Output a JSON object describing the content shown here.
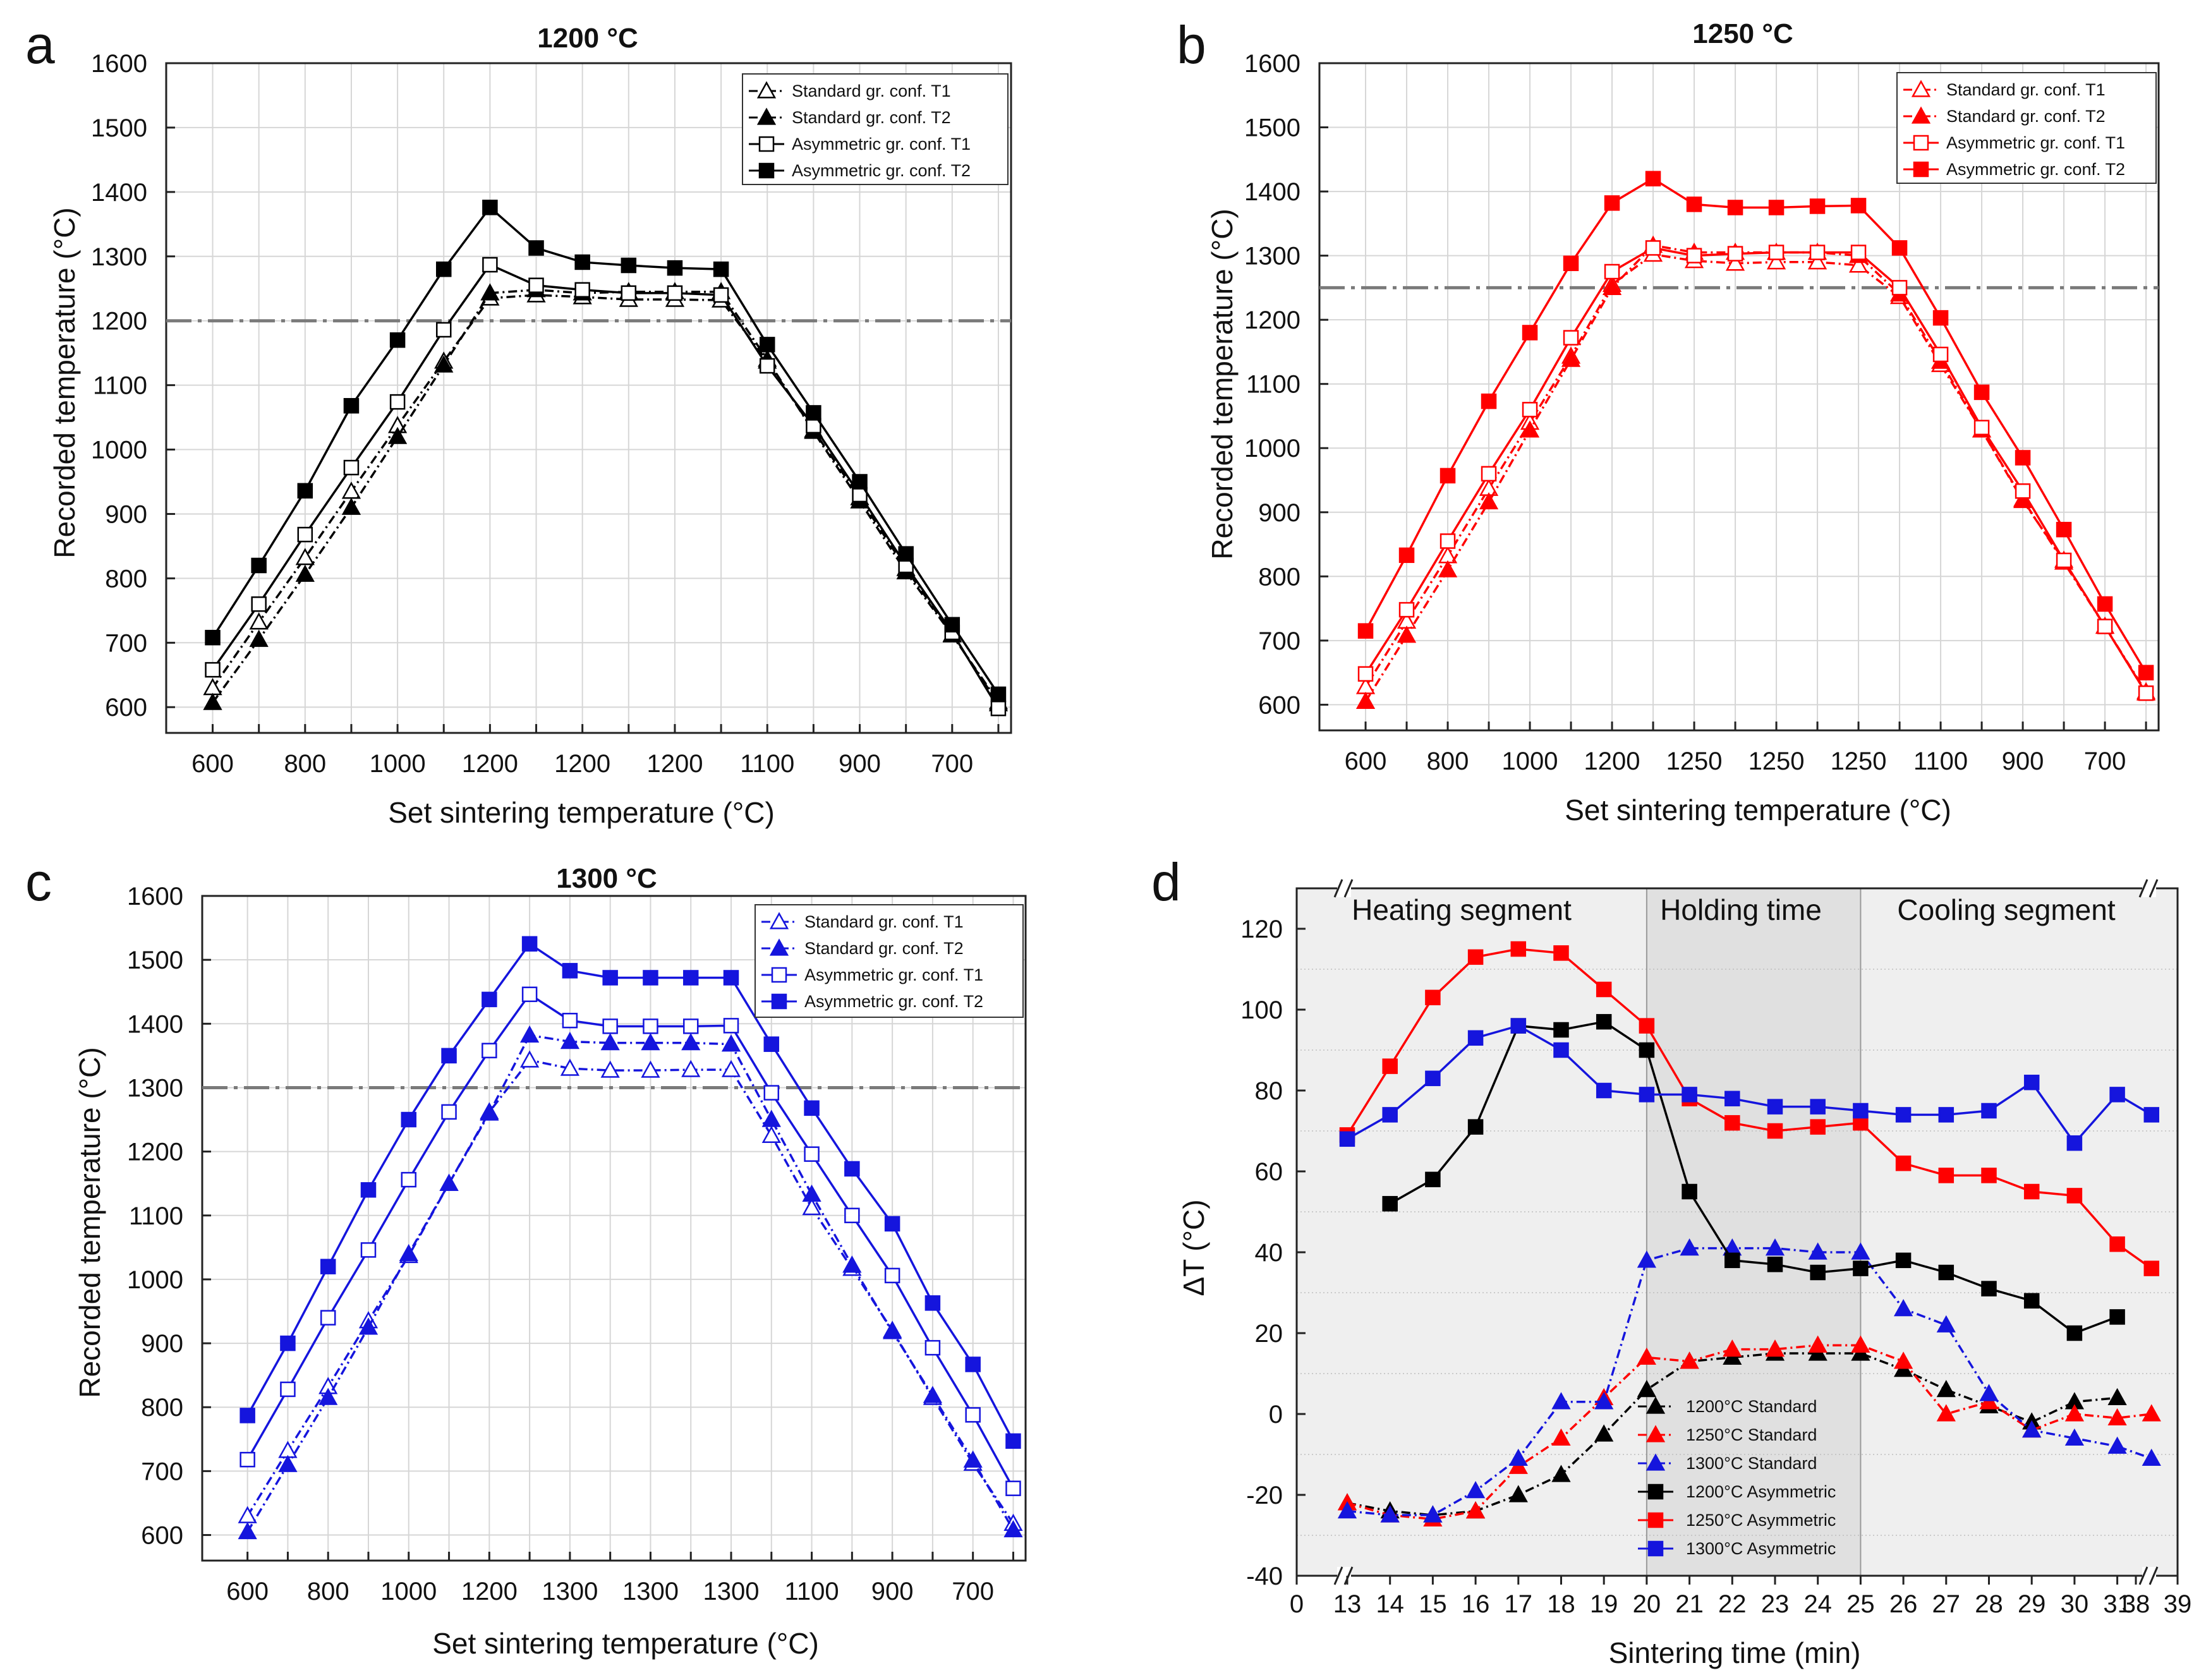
{
  "figure": {
    "colors": {
      "black": "#000000",
      "red": "#ff0000",
      "blue": "#1515dd",
      "ref": "#7a7a7a"
    },
    "panels": [
      {
        "letter": "a",
        "title": "1200 °C",
        "color": "#000000",
        "xlabel": "Set sintering temperature (°C)",
        "ylabel": "Recorded temperature (°C)",
        "ylim": [
          560,
          1600
        ],
        "yticks": [
          600,
          700,
          800,
          900,
          1000,
          1100,
          1200,
          1300,
          1400,
          1500,
          1600
        ],
        "xtick_labels": [
          "600",
          "800",
          "1000",
          "1200",
          "1200",
          "1200",
          "1100",
          "900",
          "700"
        ],
        "set_point": 1200,
        "legend": [
          "Standard gr. conf. T1",
          "Standard gr. conf. T2",
          "Asymmetric gr. conf. T1",
          "Asymmetric gr. conf. T2"
        ],
        "series": [
          {
            "name": "Standard gr. conf. T1",
            "values": [
              630,
              732,
              832,
              935,
              1037,
              1137,
              1235,
              1240,
              1237,
              1233,
              1233,
              1232,
              1137,
              1030,
              925,
              815,
              713,
              605
            ]
          },
          {
            "name": "Standard gr. conf. T2",
            "values": [
              607,
              705,
              806,
              910,
              1020,
              1131,
              1243,
              1248,
              1243,
              1245,
              1245,
              1245,
              1140,
              1028,
              920,
              810,
              712,
              608
            ]
          },
          {
            "name": "Asymmetric gr. conf. T1",
            "values": [
              658,
              760,
              868,
              972,
              1074,
              1186,
              1287,
              1255,
              1248,
              1243,
              1243,
              1240,
              1130,
              1037,
              930,
              820,
              716,
              598
            ]
          },
          {
            "name": "Asymmetric gr. conf. T2",
            "values": [
              708,
              820,
              936,
              1068,
              1170,
              1280,
              1376,
              1313,
              1291,
              1286,
              1282,
              1280,
              1163,
              1057,
              950,
              838,
              728,
              620
            ]
          }
        ]
      },
      {
        "letter": "b",
        "title": "1250 °C",
        "color": "#ff0000",
        "xlabel": "Set sintering temperature (°C)",
        "ylabel": "Recorded temperature (°C)",
        "ylim": [
          560,
          1600
        ],
        "yticks": [
          600,
          700,
          800,
          900,
          1000,
          1100,
          1200,
          1300,
          1400,
          1500,
          1600
        ],
        "xtick_labels": [
          "600",
          "800",
          "1000",
          "1200",
          "1250",
          "1250",
          "1250",
          "1100",
          "900",
          "700"
        ],
        "set_point": 1250,
        "legend": [
          "Standard gr. conf. T1",
          "Standard gr. conf. T2",
          "Asymmetric gr. conf. T1",
          "Asymmetric gr. conf. T2"
        ],
        "series": [
          {
            "name": "Standard gr. conf. T1",
            "values": [
              628,
              730,
              832,
              937,
              1040,
              1143,
              1255,
              1302,
              1292,
              1288,
              1290,
              1290,
              1285,
              1236,
              1130,
              1028,
              920,
              822,
              722,
              620
            ]
          },
          {
            "name": "Standard gr. conf. T2",
            "values": [
              605,
              708,
              810,
              916,
              1028,
              1138,
              1250,
              1316,
              1305,
              1305,
              1305,
              1305,
              1300,
              1240,
              1135,
              1028,
              918,
              825,
              722,
              618
            ]
          },
          {
            "name": "Asymmetric gr. conf. T1",
            "values": [
              648,
              748,
              855,
              960,
              1060,
              1172,
              1275,
              1312,
              1300,
              1303,
              1305,
              1305,
              1305,
              1250,
              1146,
              1032,
              933,
              825,
              722,
              618
            ]
          },
          {
            "name": "Asymmetric gr. conf. T2",
            "values": [
              715,
              833,
              957,
              1073,
              1180,
              1288,
              1382,
              1420,
              1380,
              1375,
              1375,
              1377,
              1378,
              1312,
              1203,
              1087,
              985,
              873,
              757,
              650
            ]
          }
        ]
      },
      {
        "letter": "c",
        "title": "1300 °C",
        "color": "#1515dd",
        "xlabel": "Set sintering temperature (°C)",
        "ylabel": "Recorded temperature (°C)",
        "ylim": [
          560,
          1600
        ],
        "yticks": [
          600,
          700,
          800,
          900,
          1000,
          1100,
          1200,
          1300,
          1400,
          1500,
          1600
        ],
        "xtick_labels": [
          "600",
          "800",
          "1000",
          "1200",
          "1300",
          "1300",
          "1300",
          "1100",
          "900",
          "700"
        ],
        "set_point": 1300,
        "legend": [
          "Standard gr. conf. T1",
          "Standard gr. conf. T2",
          "Asymmetric gr. conf. T1",
          "Asymmetric gr. conf. T2"
        ],
        "series": [
          {
            "name": "Standard gr. conf. T1",
            "values": [
              630,
              732,
              832,
              935,
              1037,
              1150,
              1262,
              1343,
              1330,
              1327,
              1327,
              1328,
              1328,
              1225,
              1112,
              1017,
              920,
              815,
              712,
              618
            ]
          },
          {
            "name": "Standard gr. conf. T2",
            "values": [
              605,
              710,
              815,
              925,
              1040,
              1150,
              1260,
              1382,
              1372,
              1370,
              1370,
              1370,
              1368,
              1250,
              1133,
              1022,
              918,
              818,
              717,
              608
            ]
          },
          {
            "name": "Asymmetric gr. conf. T1",
            "values": [
              718,
              828,
              940,
              1046,
              1156,
              1262,
              1358,
              1446,
              1405,
              1396,
              1396,
              1396,
              1397,
              1292,
              1196,
              1100,
              1006,
              893,
              788,
              673
            ]
          },
          {
            "name": "Asymmetric gr. conf. T2",
            "values": [
              787,
              900,
              1020,
              1140,
              1250,
              1350,
              1438,
              1525,
              1483,
              1472,
              1472,
              1472,
              1472,
              1368,
              1268,
              1173,
              1087,
              963,
              867,
              747
            ]
          }
        ]
      },
      {
        "letter": "d",
        "xlabel": "Sintering time (min)",
        "ylabel": "ΔT (°C)",
        "ylim": [
          -40,
          130
        ],
        "yticks": [
          -40,
          -20,
          0,
          20,
          40,
          60,
          80,
          100,
          120
        ],
        "xtick_labels": [
          "0",
          "13",
          "14",
          "15",
          "16",
          "17",
          "18",
          "19",
          "20",
          "21",
          "22",
          "23",
          "24",
          "25",
          "26",
          "27",
          "28",
          "29",
          "30",
          "31",
          "38",
          "39"
        ],
        "segments": [
          {
            "label": "Heating segment",
            "from": 13,
            "to": 20
          },
          {
            "label": "Holding time",
            "from": 20,
            "to": 25
          },
          {
            "label": "Cooling segment",
            "from": 25,
            "to": 31.7
          }
        ],
        "chart_data": {
          "type": "line",
          "x": [
            13,
            14,
            15,
            16,
            17,
            18,
            19,
            20,
            21,
            22,
            23,
            24,
            25,
            26,
            27,
            28,
            29,
            30,
            31,
            31.8
          ],
          "series": [
            {
              "name": "1200°C Standard",
              "style": "standard",
              "values": [
                -22,
                -24,
                -25,
                -24,
                -20,
                -15,
                -5,
                6,
                13,
                14,
                15,
                15,
                15,
                11,
                6,
                2,
                -2,
                3,
                4,
                null
              ]
            },
            {
              "name": "1250°C Standard",
              "style": "standard",
              "values": [
                -22,
                -25,
                -26,
                -24,
                -13,
                -6,
                4,
                14,
                13,
                16,
                16,
                17,
                17,
                13,
                0,
                3,
                -4,
                0,
                -1,
                0
              ]
            },
            {
              "name": "1300°C Standard",
              "style": "standard",
              "values": [
                -24,
                -25,
                -25,
                -19,
                -11,
                3,
                3,
                38,
                41,
                41,
                41,
                40,
                40,
                26,
                22,
                5,
                -4,
                -6,
                -8,
                -11
              ]
            },
            {
              "name": "1200°C Asymmetric",
              "style": "asymmetric",
              "values": [
                null,
                52,
                58,
                71,
                96,
                95,
                97,
                90,
                55,
                38,
                37,
                35,
                36,
                38,
                35,
                31,
                28,
                20,
                24,
                null
              ]
            },
            {
              "name": "1250°C Asymmetric",
              "style": "asymmetric",
              "values": [
                69,
                86,
                103,
                113,
                115,
                114,
                105,
                96,
                78,
                72,
                70,
                71,
                72,
                62,
                59,
                59,
                55,
                54,
                42,
                36
              ]
            },
            {
              "name": "1300°C Asymmetric",
              "style": "asymmetric",
              "values": [
                68,
                74,
                83,
                93,
                96,
                90,
                80,
                79,
                79,
                78,
                76,
                76,
                75,
                74,
                74,
                75,
                82,
                67,
                79,
                74
              ]
            }
          ],
          "legend": [
            "1200°C Standard",
            "1250°C Standard",
            "1300°C Standard",
            "1200°C Asymmetric",
            "1250°C Asymmetric",
            "1300°C Asymmetric"
          ],
          "series_colors": [
            "#000000",
            "#ff0000",
            "#1515dd",
            "#000000",
            "#ff0000",
            "#1515dd"
          ]
        }
      }
    ]
  }
}
